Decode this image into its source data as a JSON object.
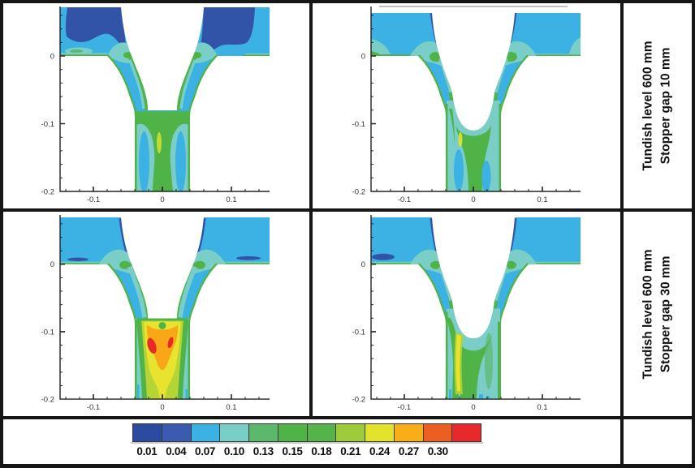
{
  "figure": {
    "row_labels": [
      {
        "line1": "Tundish level 600 mm",
        "line2": "Stopper gap 10 mm"
      },
      {
        "line1": "Tundish level 600 mm",
        "line2": "Stopper gap 30 mm"
      }
    ],
    "axes": {
      "x_ticks": [
        "-0.1",
        "0",
        "0.1"
      ],
      "y_ticks": [
        "0",
        "-0.1",
        "-0.2"
      ]
    },
    "colorbar": {
      "labels": [
        "0.01",
        "0.04",
        "0.07",
        "0.10",
        "0.13",
        "0.15",
        "0.18",
        "0.21",
        "0.24",
        "0.27",
        "0.30"
      ],
      "colors": [
        "#2a4ba0",
        "#3a5bb0",
        "#3cb1e3",
        "#79cec7",
        "#5cb96c",
        "#4fb348",
        "#55b449",
        "#9ecb3b",
        "#e3e32e",
        "#f9ad16",
        "#eb6022",
        "#e8292b"
      ]
    }
  },
  "chart_data": {
    "type": "heatmap",
    "subtype": "2x2 grid of filled-contour CFD plots of flow through a tundish stopper gap and nozzle bore",
    "x_range": [
      -0.155,
      0.155
    ],
    "y_range": [
      -0.2,
      0.07
    ],
    "x_ticks": [
      -0.1,
      0,
      0.1
    ],
    "y_ticks": [
      0,
      -0.1,
      -0.2
    ],
    "grid": false,
    "legend_position": "bottom colorbar",
    "contour_levels": [
      0.01,
      0.04,
      0.07,
      0.1,
      0.13,
      0.15,
      0.18,
      0.21,
      0.24,
      0.27,
      0.3
    ],
    "colorbar_colors": [
      "#2a4ba0",
      "#3a5bb0",
      "#3cb1e3",
      "#79cec7",
      "#5cb96c",
      "#4fb348",
      "#55b449",
      "#9ecb3b",
      "#e3e32e",
      "#f9ad16",
      "#eb6022",
      "#e8292b"
    ],
    "panels": [
      {
        "row": 1,
        "col": 1,
        "row_label": "Tundish level 600 mm, Stopper gap 10 mm",
        "stopper_nose": "flat",
        "field": "low values ~0.01-0.04 (dark blue) in upper-left tundish band; bulk ~0.07 (light blue); ~0.13-0.18 (green) along nozzle walls and in bore core below flat stopper nose; faint ~0.21 streak at bore centre"
      },
      {
        "row": 1,
        "col": 2,
        "row_label": "Tundish level 600 mm, Stopper gap 10 mm",
        "stopper_nose": "rounded",
        "field": "bulk ~0.07 light blue; ~0.10 teal near gap entrance; ~0.15-0.18 green along walls and under rounded nose; small ~0.24 yellow streak below nose"
      },
      {
        "row": 2,
        "col": 1,
        "row_label": "Tundish level 600 mm, Stopper gap 30 mm",
        "stopper_nose": "flat",
        "field": "peak ~0.30 (red) spots with ~0.24-0.27 (orange) region in nozzle bore just below flat stopper nose; ~0.24 yellow jet down bore centre; green/teal surround"
      },
      {
        "row": 2,
        "col": 2,
        "row_label": "Tundish level 600 mm, Stopper gap 30 mm",
        "stopper_nose": "rounded",
        "field": "bulk ~0.07-0.10; ~0.15-0.18 green column left of bore centre with ~0.24 yellow streak from below rounded nose to outlet"
      }
    ]
  }
}
